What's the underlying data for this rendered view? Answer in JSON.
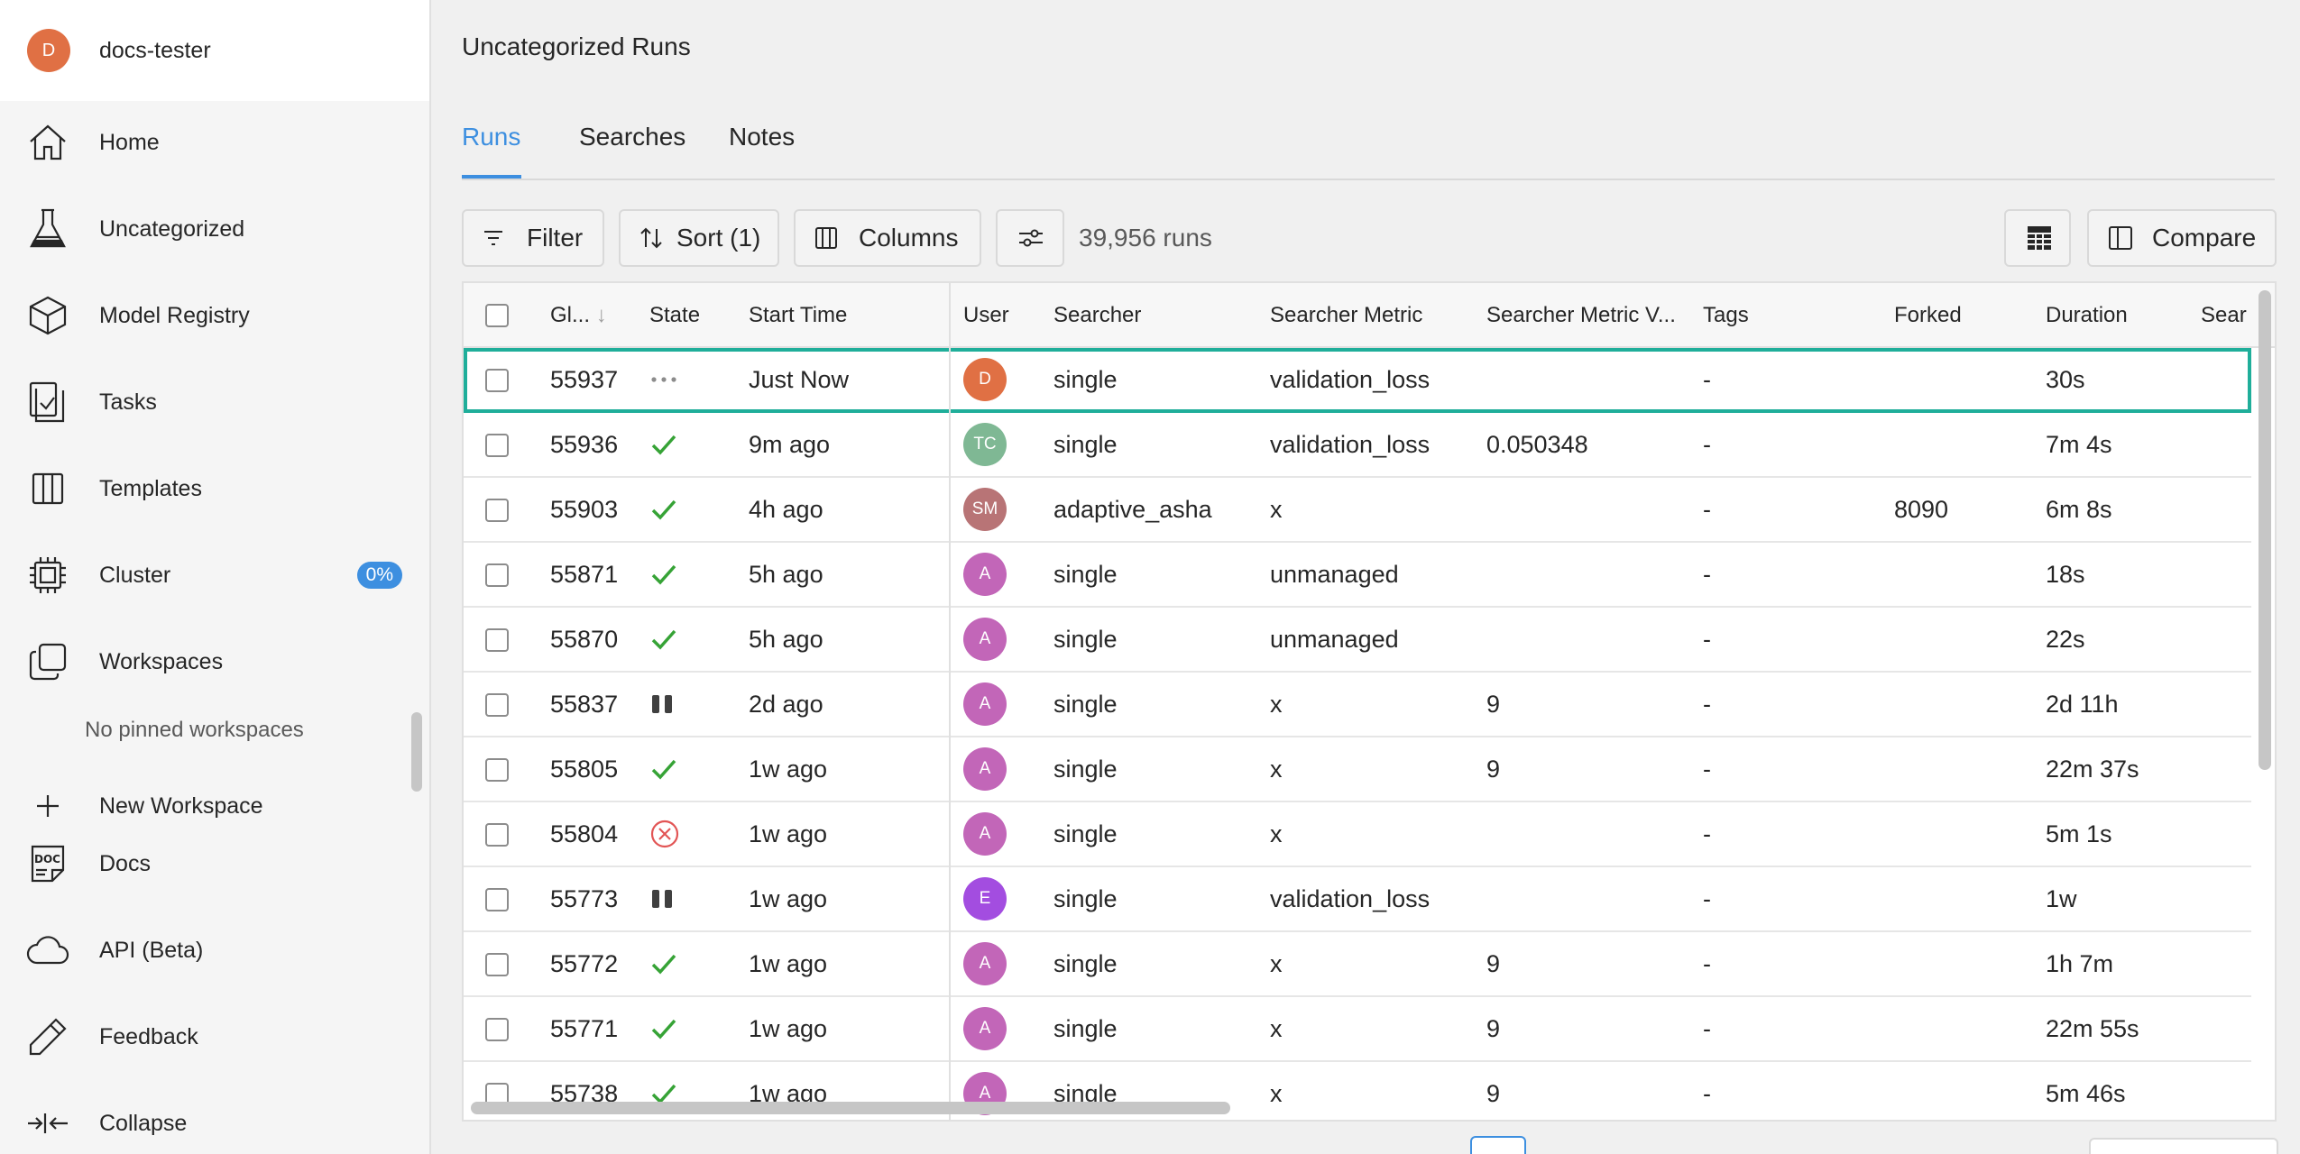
{
  "user": {
    "initial": "D",
    "name": "docs-tester"
  },
  "nav": {
    "home": "Home",
    "uncategorized": "Uncategorized",
    "model_registry": "Model Registry",
    "tasks": "Tasks",
    "templates": "Templates",
    "cluster": "Cluster",
    "cluster_badge": "0%",
    "workspaces": "Workspaces",
    "no_pinned": "No pinned workspaces",
    "new_workspace": "New Workspace",
    "docs": "Docs",
    "api": "API (Beta)",
    "feedback": "Feedback",
    "collapse": "Collapse"
  },
  "page": {
    "title": "Uncategorized Runs"
  },
  "tabs": [
    "Runs",
    "Searches",
    "Notes"
  ],
  "toolbar": {
    "filter": "Filter",
    "sort": "Sort (1)",
    "columns": "Columns",
    "run_count": "39,956 runs",
    "compare": "Compare"
  },
  "columns": {
    "id": "Gl...",
    "state": "State",
    "start_time": "Start Time",
    "user": "User",
    "searcher": "Searcher",
    "searcher_metric": "Searcher Metric",
    "searcher_metric_value": "Searcher Metric V...",
    "tags": "Tags",
    "forked": "Forked",
    "duration": "Duration",
    "extra": "Sear"
  },
  "rows": [
    {
      "id": "55937",
      "state": "running",
      "start": "Just Now",
      "user": "D",
      "user_color": "#e07044",
      "searcher": "single",
      "metric": "validation_loss",
      "metric_value": "",
      "tags": "-",
      "forked": "",
      "duration": "30s"
    },
    {
      "id": "55936",
      "state": "completed",
      "start": "9m ago",
      "user": "TC",
      "user_color": "#7fb894",
      "searcher": "single",
      "metric": "validation_loss",
      "metric_value": "0.050348",
      "tags": "-",
      "forked": "",
      "duration": "7m 4s"
    },
    {
      "id": "55903",
      "state": "completed",
      "start": "4h ago",
      "user": "SM",
      "user_color": "#b87476",
      "searcher": "adaptive_asha",
      "metric": "x",
      "metric_value": "",
      "tags": "-",
      "forked": "8090",
      "duration": "6m 8s"
    },
    {
      "id": "55871",
      "state": "completed",
      "start": "5h ago",
      "user": "A",
      "user_color": "#c266b8",
      "searcher": "single",
      "metric": "unmanaged",
      "metric_value": "",
      "tags": "-",
      "forked": "",
      "duration": "18s"
    },
    {
      "id": "55870",
      "state": "completed",
      "start": "5h ago",
      "user": "A",
      "user_color": "#c266b8",
      "searcher": "single",
      "metric": "unmanaged",
      "metric_value": "",
      "tags": "-",
      "forked": "",
      "duration": "22s"
    },
    {
      "id": "55837",
      "state": "paused",
      "start": "2d ago",
      "user": "A",
      "user_color": "#c266b8",
      "searcher": "single",
      "metric": "x",
      "metric_value": "9",
      "tags": "-",
      "forked": "",
      "duration": "2d 11h"
    },
    {
      "id": "55805",
      "state": "completed",
      "start": "1w ago",
      "user": "A",
      "user_color": "#c266b8",
      "searcher": "single",
      "metric": "x",
      "metric_value": "9",
      "tags": "-",
      "forked": "",
      "duration": "22m 37s"
    },
    {
      "id": "55804",
      "state": "error",
      "start": "1w ago",
      "user": "A",
      "user_color": "#c266b8",
      "searcher": "single",
      "metric": "x",
      "metric_value": "",
      "tags": "-",
      "forked": "",
      "duration": "5m 1s"
    },
    {
      "id": "55773",
      "state": "paused",
      "start": "1w ago",
      "user": "E",
      "user_color": "#a34de0",
      "searcher": "single",
      "metric": "validation_loss",
      "metric_value": "",
      "tags": "-",
      "forked": "",
      "duration": "1w"
    },
    {
      "id": "55772",
      "state": "completed",
      "start": "1w ago",
      "user": "A",
      "user_color": "#c266b8",
      "searcher": "single",
      "metric": "x",
      "metric_value": "9",
      "tags": "-",
      "forked": "",
      "duration": "1h 7m"
    },
    {
      "id": "55771",
      "state": "completed",
      "start": "1w ago",
      "user": "A",
      "user_color": "#c266b8",
      "searcher": "single",
      "metric": "x",
      "metric_value": "9",
      "tags": "-",
      "forked": "",
      "duration": "22m 55s"
    },
    {
      "id": "55738",
      "state": "completed",
      "start": "1w ago",
      "user": "A",
      "user_color": "#c266b8",
      "searcher": "single",
      "metric": "x",
      "metric_value": "9",
      "tags": "-",
      "forked": "",
      "duration": "5m 46s"
    }
  ],
  "colors": {
    "accent": "#3d8fe0",
    "selected_border": "#1fae9a",
    "success": "#36a336",
    "error": "#e25555"
  }
}
